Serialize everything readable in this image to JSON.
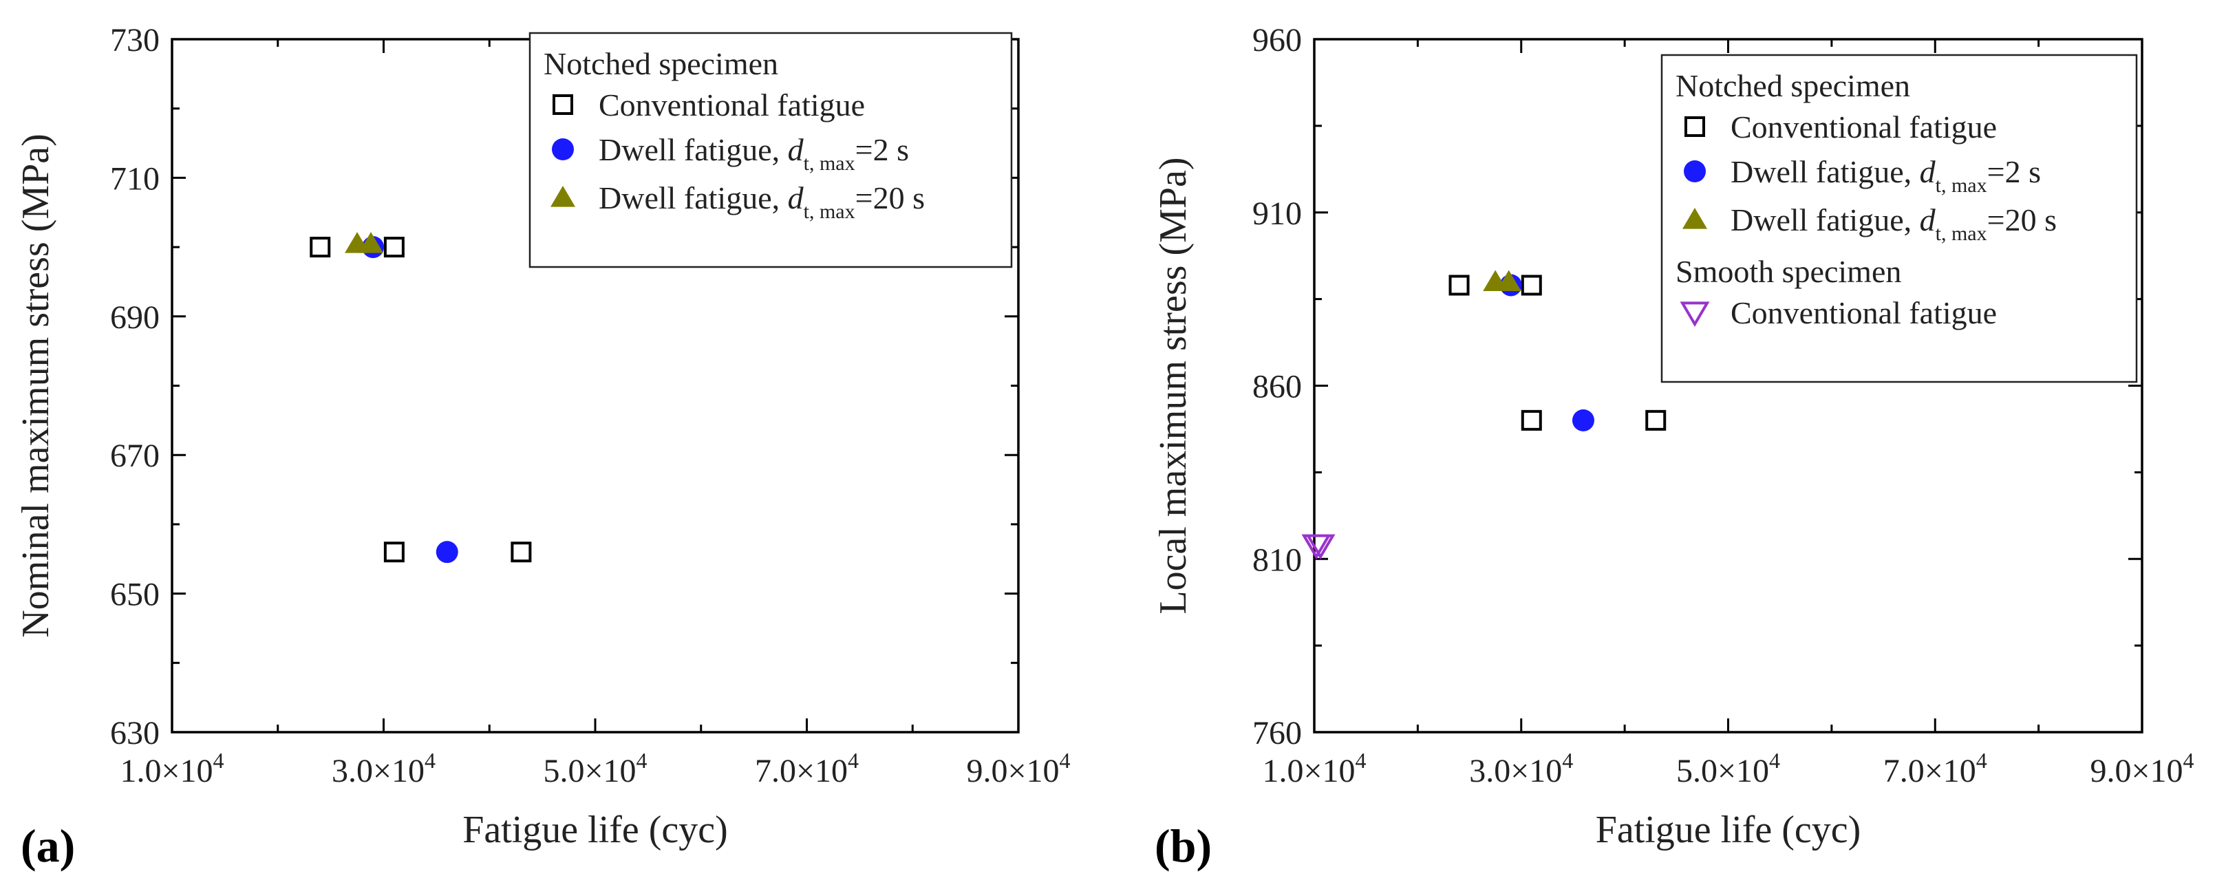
{
  "chart_data": [
    {
      "panel": "(a)",
      "type": "scatter",
      "xlabel": "Fatigue life (cyc)",
      "ylabel": "Nominal maximum stress (MPa)",
      "xlim": [
        10000,
        90000
      ],
      "ylim": [
        630,
        730
      ],
      "xticks": [
        10000,
        30000,
        50000,
        70000,
        90000
      ],
      "xtick_labels": [
        "1.0×10",
        "3.0×10",
        "5.0×10",
        "7.0×10",
        "9.0×10"
      ],
      "xtick_exp": "4",
      "yticks": [
        630,
        650,
        670,
        690,
        710,
        730
      ],
      "ytick_labels": [
        "630",
        "650",
        "670",
        "690",
        "710",
        "730"
      ],
      "legend": {
        "position": "top-right",
        "groups": [
          {
            "title": "Notched specimen",
            "entries": [
              {
                "marker": "square-open",
                "label": "Conventional fatigue"
              },
              {
                "marker": "circle",
                "label_pre": "Dwell fatigue, ",
                "label_var": "d",
                "label_sub": "t, max",
                "label_post": "=2 s"
              },
              {
                "marker": "triangle",
                "label_pre": "Dwell fatigue, ",
                "label_var": "d",
                "label_sub": "t, max",
                "label_post": "=20 s"
              }
            ]
          }
        ]
      },
      "series": [
        {
          "name": "Notched - Conventional fatigue",
          "marker": "square-open",
          "color": "#000000",
          "x": [
            24000,
            31000,
            31000,
            43000
          ],
          "y": [
            700,
            700,
            656,
            656
          ]
        },
        {
          "name": "Notched - Dwell fatigue, d_t,max=2 s",
          "marker": "circle",
          "color": "#1a1aff",
          "x": [
            29000,
            36000
          ],
          "y": [
            700,
            656
          ]
        },
        {
          "name": "Notched - Dwell fatigue, d_t,max=20 s",
          "marker": "triangle",
          "color": "#808000",
          "x": [
            27500,
            28800
          ],
          "y": [
            700.5,
            700.5
          ]
        }
      ]
    },
    {
      "panel": "(b)",
      "type": "scatter",
      "xlabel": "Fatigue life (cyc)",
      "ylabel": "Local maximum stress (MPa)",
      "xlim": [
        10000,
        90000
      ],
      "ylim": [
        760,
        960
      ],
      "xticks": [
        10000,
        30000,
        50000,
        70000,
        90000
      ],
      "xtick_labels": [
        "1.0×10",
        "3.0×10",
        "5.0×10",
        "7.0×10",
        "9.0×10"
      ],
      "xtick_exp": "4",
      "yticks": [
        760,
        810,
        860,
        910,
        960
      ],
      "ytick_labels": [
        "760",
        "810",
        "860",
        "910",
        "960"
      ],
      "legend": {
        "position": "top-right",
        "groups": [
          {
            "title": "Notched specimen",
            "entries": [
              {
                "marker": "square-open",
                "label": "Conventional fatigue"
              },
              {
                "marker": "circle",
                "label_pre": "Dwell fatigue, ",
                "label_var": "d",
                "label_sub": "t, max",
                "label_post": "=2 s"
              },
              {
                "marker": "triangle",
                "label_pre": "Dwell fatigue, ",
                "label_var": "d",
                "label_sub": "t, max",
                "label_post": "=20 s"
              }
            ]
          },
          {
            "title": "Smooth specimen",
            "entries": [
              {
                "marker": "triangle-down-open",
                "label": "Conventional fatigue"
              }
            ]
          }
        ]
      },
      "series": [
        {
          "name": "Notched - Conventional fatigue",
          "marker": "square-open",
          "color": "#000000",
          "x": [
            24000,
            31000,
            31000,
            43000
          ],
          "y": [
            889,
            889,
            850,
            850
          ]
        },
        {
          "name": "Notched - Dwell fatigue, d_t,max=2 s",
          "marker": "circle",
          "color": "#1a1aff",
          "x": [
            29000,
            36000
          ],
          "y": [
            889,
            850
          ]
        },
        {
          "name": "Notched - Dwell fatigue, d_t,max=20 s",
          "marker": "triangle",
          "color": "#808000",
          "x": [
            27500,
            28800
          ],
          "y": [
            890,
            890
          ]
        },
        {
          "name": "Smooth - Conventional fatigue",
          "marker": "triangle-down-open",
          "color": "#9933cc",
          "x": [
            10200,
            10600
          ],
          "y": [
            814,
            814
          ]
        }
      ]
    }
  ]
}
